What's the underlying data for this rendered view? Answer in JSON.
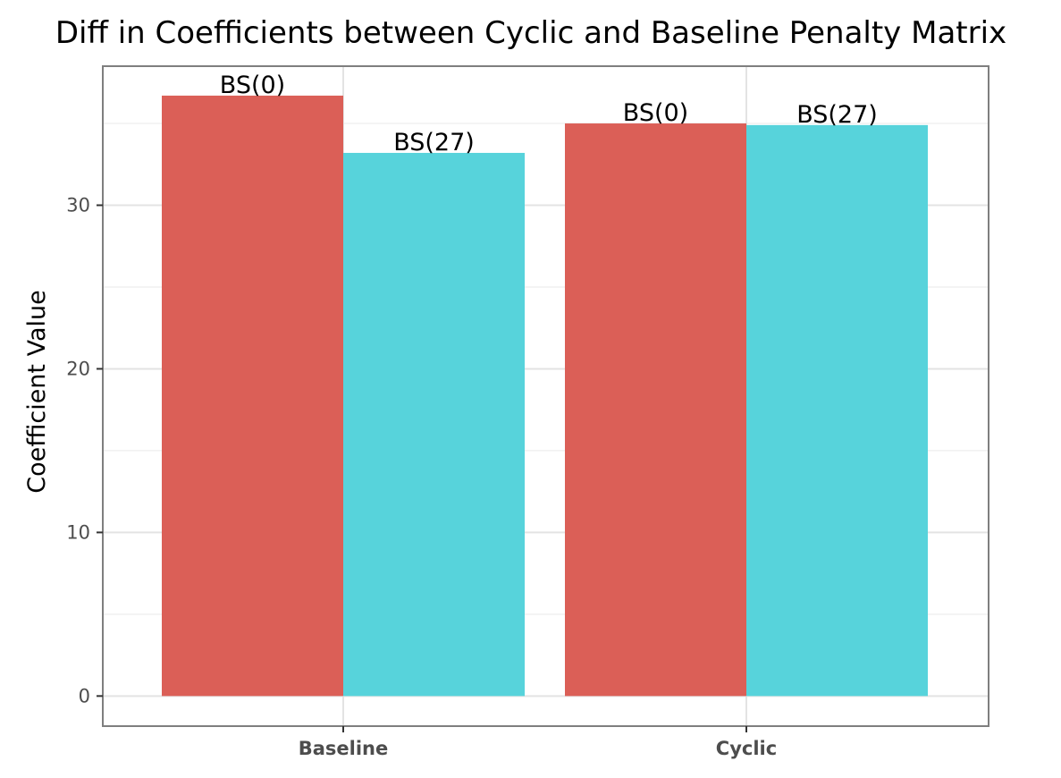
{
  "chart_data": {
    "type": "bar",
    "title": "Diff in Coefficients between Cyclic and Baseline Penalty Matrix",
    "xlabel": "",
    "ylabel": "Coefficient Value",
    "categories": [
      "Baseline",
      "Cyclic"
    ],
    "series": [
      {
        "color": "#db5f57",
        "values": [
          36.7,
          35.0
        ],
        "labels": [
          "BS(0)",
          "BS(0)"
        ]
      },
      {
        "color": "#57d3db",
        "values": [
          33.2,
          34.9
        ],
        "labels": [
          "BS(27)",
          "BS(27)"
        ]
      }
    ],
    "yticks": [
      0,
      10,
      20,
      30
    ],
    "ylim": [
      -1.84,
      38.5
    ],
    "grid": true,
    "legend": "none"
  }
}
